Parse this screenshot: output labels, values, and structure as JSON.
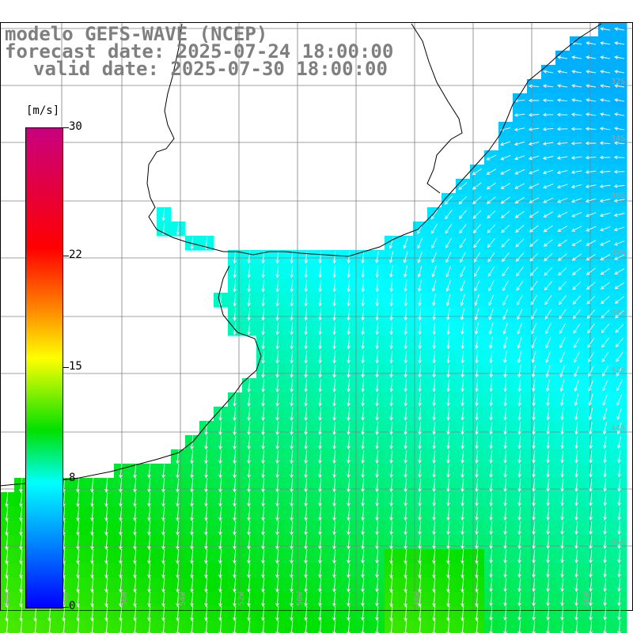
{
  "title": {
    "line1": "modelo GEFS-WAVE (NCEP)",
    "line2": "forecast date: 2025-07-24 18:00:00",
    "line3": "valid date: 2025-07-30 18:00:00"
  },
  "colorbar": {
    "unit": "[m/s]",
    "ticks": [
      "30",
      "22",
      "15",
      "8",
      "0"
    ],
    "tick_values": [
      30,
      22,
      15,
      8,
      0
    ],
    "min": 0,
    "max": 30,
    "colors": [
      "#0000ff",
      "#0080ff",
      "#00ffff",
      "#00e000",
      "#ffff00",
      "#ff7f00",
      "#ff0000",
      "#c8007f"
    ]
  },
  "map": {
    "field": "wind speed",
    "grid_lon_labels": [
      "60W",
      "58W",
      "56W",
      "54W",
      "52W",
      "50W",
      "48W",
      "46W"
    ],
    "grid_lat_labels": [
      "32S",
      "34S",
      "36S",
      "38S",
      "40S",
      "42S",
      "44S",
      "46S"
    ],
    "wind_regions": [
      {
        "area": "northeast offshore",
        "speed_ms": 7,
        "direction": "from east, arrows pointing west/southwest"
      },
      {
        "area": "Rio de la Plata mouth",
        "speed_ms": 8,
        "direction": "southwest"
      },
      {
        "area": "central shelf",
        "speed_ms": 9,
        "direction": "south-southwest"
      },
      {
        "area": "south",
        "speed_ms": 11,
        "direction": "south"
      }
    ],
    "colors": {
      "land": "#ffffff",
      "coast": "#000000",
      "grid": "#808080",
      "arrow": "#ffffff",
      "labels": "#a0a0a0"
    }
  }
}
